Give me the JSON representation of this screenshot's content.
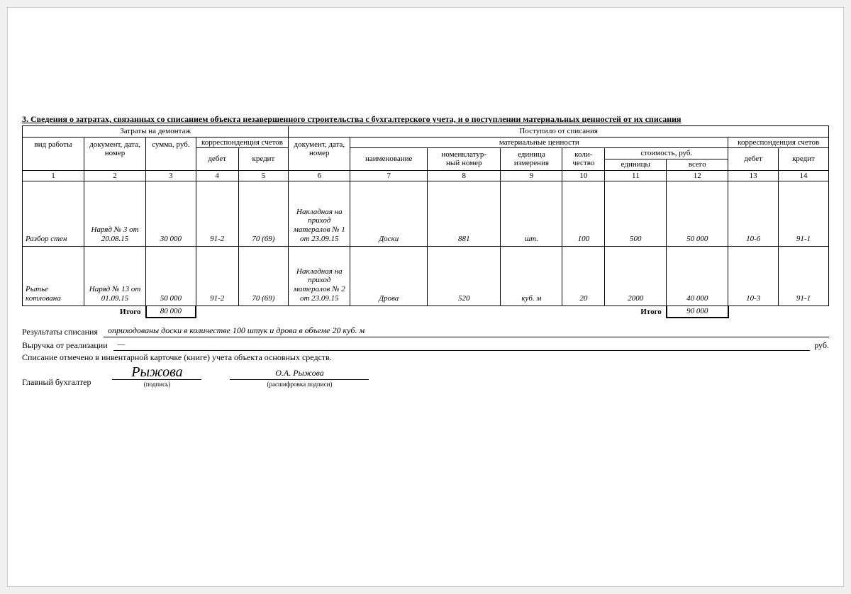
{
  "section_title": "3. Сведения о затратах, связанных со списанием объекта незавершенного строительства с бухгалтерского учета, и о поступлении материальных ценностей от их списания",
  "headers": {
    "group_left": "Затраты на демонтаж",
    "group_right": "Поступило от списания",
    "work_type": "вид работы",
    "doc1": "документ, дата, номер",
    "sum": "сумма, руб.",
    "corr": "корреспонденция счетов",
    "debit": "дебет",
    "credit": "кредит",
    "doc2": "документ, дата, номер",
    "mat": "материальные ценности",
    "name": "наименование",
    "nomen": "номенклатур-\nный номер",
    "unit": "единица измерения",
    "qty": "коли-\nчество",
    "cost": "стоимость, руб.",
    "cost_unit": "единицы",
    "cost_total": "всего",
    "corr2": "корреспонденция счетов"
  },
  "col_nums": [
    "1",
    "2",
    "3",
    "4",
    "5",
    "6",
    "7",
    "8",
    "9",
    "10",
    "11",
    "12",
    "13",
    "14"
  ],
  "rows": [
    {
      "work": "Разбор стен",
      "doc1": "Наряд № 3 от 20.08.15",
      "sum": "30 000",
      "deb1": "91-2",
      "cred1": "70 (69)",
      "doc2": "Накладная на приход матералов № 1 от 23.09.15",
      "name": "Доски",
      "nomen": "881",
      "unit": "шт.",
      "qty": "100",
      "cost_u": "500",
      "cost_t": "50 000",
      "deb2": "10-6",
      "cred2": "91-1"
    },
    {
      "work": "Рытье котлована",
      "doc1": "Наряд № 13 от 01.09.15",
      "sum": "50 000",
      "deb1": "91-2",
      "cred1": "70 (69)",
      "doc2": "Накладная на приход матералов № 2 от 23.09.15",
      "name": "Дрова",
      "nomen": "520",
      "unit": "куб. м",
      "qty": "20",
      "cost_u": "2000",
      "cost_t": "40 000",
      "deb2": "10-3",
      "cred2": "91-1"
    }
  ],
  "totals": {
    "label": "Итого",
    "sum": "80 000",
    "label2": "Итого",
    "cost_t": "90 000"
  },
  "footer": {
    "res_label": "Результаты списания",
    "res_value": "оприходованы доски в количестве 100 штук и дрова в объеме 20 куб. м",
    "rev_label": "Выручка от реализации",
    "rev_value": "—",
    "rev_unit": "руб.",
    "note": "Списание отмечено в инвентарной карточке (книге) учета объекта основных средств.",
    "chief": "Главный бухгалтер",
    "sig_script": "Рыжова",
    "sig_caption": "(подпись)",
    "sig_name": "О.А. Рыжова",
    "sig_name_caption": "(расшифровка подписи)"
  },
  "col_widths": [
    "80",
    "80",
    "65",
    "55",
    "65",
    "80",
    "100",
    "95",
    "80",
    "55",
    "80",
    "80",
    "65",
    "65"
  ]
}
